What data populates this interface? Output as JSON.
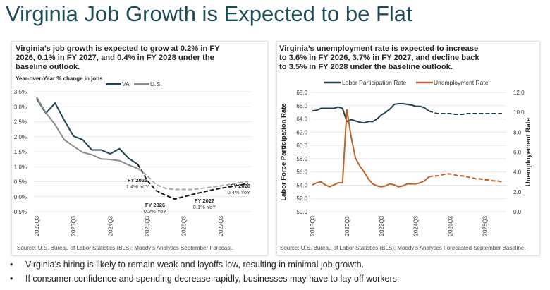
{
  "title": "Virginia Job Growth is Expected to be Flat",
  "colors": {
    "title": "#1d4b57",
    "va": "#1f4650",
    "us": "#8c8c8c",
    "lfpr": "#1f3f4a",
    "unemp": "#b8652d"
  },
  "bullets": [
    "Virginia’s hiring is likely to remain weak and layoffs low, resulting in minimal job growth.",
    "If consumer confidence and spending decrease rapidly, businesses may have to lay off workers."
  ],
  "left": {
    "heading": "Virginia’s job growth is expected to grow at 0.2% in FY 2026, 0.1% in FY 2027, and 0.4% in FY 2028 under the baseline outlook.",
    "source": "Source: U.S. Bureau of Labor Statistics (BLS); Moody’s Analytics September Forecast."
  },
  "right": {
    "heading": "Virginia’s unemployment rate is expected to increase to 3.6% in FY 2026, 3.7% in FY 2027, and decline back to 3.5% in FY 2028 under the baseline outlook.",
    "source": "Source: U.S. Bureau of Labor Statistics (BLS); Moody’s Analytics Forecasted September Baseline."
  },
  "chart_data": [
    {
      "type": "line",
      "ylabel": "Year-over-Year % change in jobs",
      "ylim": [
        -0.5,
        3.5
      ],
      "yticks": [
        "3.5%",
        "3.0%",
        "2.5%",
        "2.0%",
        "1.5%",
        "1.0%",
        "0.5%",
        "0.0%",
        "-0.5%"
      ],
      "xticks": [
        "2022Q3",
        "2023Q3",
        "2024Q3",
        "2025Q3",
        "2026Q3",
        "2027Q3"
      ],
      "x_start": "2022Q3",
      "x_end": "2028Q2",
      "forecast_start": "2025Q2",
      "grid": true,
      "legend": "top",
      "series": [
        {
          "name": "VA",
          "values": [
            3.27,
            2.78,
            3.12,
            2.55,
            2.02,
            1.9,
            1.56,
            1.56,
            1.43,
            1.6,
            1.28,
            1.08,
            0.55,
            0.2,
            0.05,
            -0.08,
            0.0,
            0.08,
            0.15,
            0.22,
            0.28,
            0.33,
            0.38,
            0.45
          ]
        },
        {
          "name": "U.S.",
          "values": [
            3.32,
            2.8,
            2.4,
            1.9,
            1.68,
            1.48,
            1.4,
            1.26,
            1.24,
            1.2,
            1.06,
            0.94,
            0.7,
            0.4,
            0.28,
            0.24,
            0.24,
            0.24,
            0.28,
            0.32,
            0.36,
            0.41,
            0.46,
            0.51
          ]
        }
      ],
      "annotations": [
        {
          "label": "FY 2025",
          "value": "1.4% YoY"
        },
        {
          "label": "FY 2026",
          "value": "0.2% YoY"
        },
        {
          "label": "FY 2027",
          "value": "0.1% YoY"
        },
        {
          "label": "FY 2028",
          "value": "0.4% YoY"
        }
      ]
    },
    {
      "type": "line",
      "ylabel": "Labor Force Participation Rate",
      "y2label": "Unemployement Rate",
      "ylim": [
        50,
        68
      ],
      "y2lim": [
        0,
        12
      ],
      "yticks": [
        "68.0",
        "66.0",
        "64.0",
        "62.0",
        "60.0",
        "58.0",
        "56.0",
        "54.0",
        "52.0",
        "50.0"
      ],
      "y2ticks": [
        "12.0",
        "10.0",
        "8.0",
        "6.0",
        "4.0",
        "2.0",
        "0.0"
      ],
      "xticks": [
        "2018Q3",
        "2020Q3",
        "2022Q3",
        "2024Q3",
        "2026Q3",
        "2028Q3"
      ],
      "x_start": "2018Q3",
      "x_end": "2029Q3",
      "forecast_start": "2025Q2",
      "grid": true,
      "legend": "top",
      "series": [
        {
          "name": "Labor Participation Rate",
          "axis": "left",
          "values": [
            65.2,
            65.3,
            65.6,
            65.6,
            65.6,
            65.6,
            65.8,
            65.6,
            63.6,
            63.9,
            63.7,
            63.5,
            63.4,
            63.6,
            63.6,
            64.0,
            64.6,
            65.0,
            65.5,
            66.2,
            66.3,
            66.3,
            66.2,
            66.1,
            65.9,
            65.9,
            65.7,
            65.2,
            65.0,
            64.8,
            64.8,
            64.8,
            64.8,
            64.7,
            64.7,
            64.7,
            64.8,
            64.8,
            64.8,
            64.8,
            64.8,
            64.8,
            64.8,
            64.8,
            64.8
          ]
        },
        {
          "name": "Unemployment Rate",
          "axis": "right",
          "values": [
            2.7,
            2.9,
            3.0,
            2.7,
            2.5,
            2.7,
            2.9,
            2.9,
            10.3,
            7.5,
            5.4,
            4.6,
            4.0,
            3.3,
            2.8,
            2.6,
            2.5,
            2.6,
            2.8,
            2.7,
            2.5,
            2.6,
            2.8,
            2.8,
            2.8,
            2.9,
            3.1,
            3.5,
            3.6,
            3.6,
            3.7,
            3.8,
            3.8,
            3.7,
            3.6,
            3.6,
            3.5,
            3.4,
            3.3,
            3.3,
            3.2,
            3.2,
            3.1,
            3.1,
            3.0
          ]
        }
      ]
    }
  ]
}
